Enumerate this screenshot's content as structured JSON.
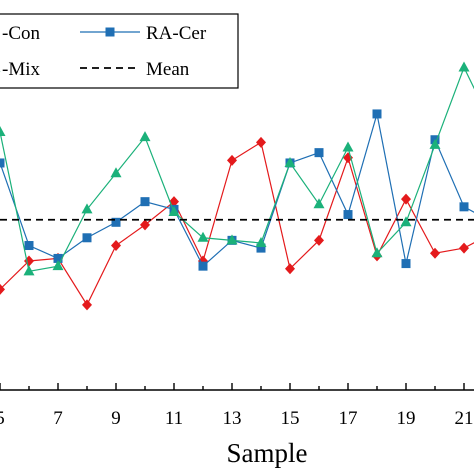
{
  "chart_data": {
    "type": "line",
    "xlabel": "Sample",
    "ylabel": "",
    "title": "",
    "x_tick_labels": [
      "5",
      "7",
      "9",
      "11",
      "13",
      "15",
      "17",
      "19",
      "21"
    ],
    "x": [
      5,
      6,
      7,
      8,
      9,
      10,
      11,
      12,
      13,
      14,
      15,
      16,
      17,
      18,
      19,
      20,
      21,
      22
    ],
    "ylim": [
      0,
      10
    ],
    "grid": false,
    "legend_position": "top-left",
    "legend": [
      {
        "label": "-Con",
        "series": 0
      },
      {
        "label": "RA-Cer",
        "series": 1
      },
      {
        "label": "-Mix",
        "series": 2
      },
      {
        "label": "Mean",
        "series": 3
      }
    ],
    "series": [
      {
        "values": [
          3.9,
          5.0,
          5.1,
          3.3,
          5.6,
          6.4,
          7.3,
          5.0,
          8.9,
          9.6,
          4.7,
          5.8,
          9.0,
          5.2,
          7.4,
          5.3,
          5.5,
          6.1
        ],
        "color": "#e41a1c",
        "marker": "diamond",
        "line": "solid"
      },
      {
        "values": [
          8.8,
          5.6,
          5.1,
          5.9,
          6.5,
          7.3,
          7.0,
          4.8,
          5.8,
          5.5,
          8.8,
          9.2,
          6.8,
          10.7,
          4.9,
          9.7,
          7.1,
          6.5
        ],
        "color": "#1f6fb4",
        "marker": "square",
        "line": "solid"
      },
      {
        "values": [
          10.0,
          4.6,
          4.8,
          7.0,
          8.4,
          9.8,
          6.9,
          5.9,
          5.8,
          5.7,
          8.8,
          7.2,
          9.4,
          5.3,
          6.5,
          9.5,
          12.5,
          10.2
        ],
        "color": "#1bb17a",
        "marker": "triangle",
        "line": "solid"
      },
      {
        "values": [
          6.6,
          6.6,
          6.6,
          6.6,
          6.6,
          6.6,
          6.6,
          6.6,
          6.6,
          6.6,
          6.6,
          6.6,
          6.6,
          6.6,
          6.6,
          6.6,
          6.6,
          6.6
        ],
        "color": "#000000",
        "marker": "none",
        "line": "dashed"
      }
    ]
  }
}
